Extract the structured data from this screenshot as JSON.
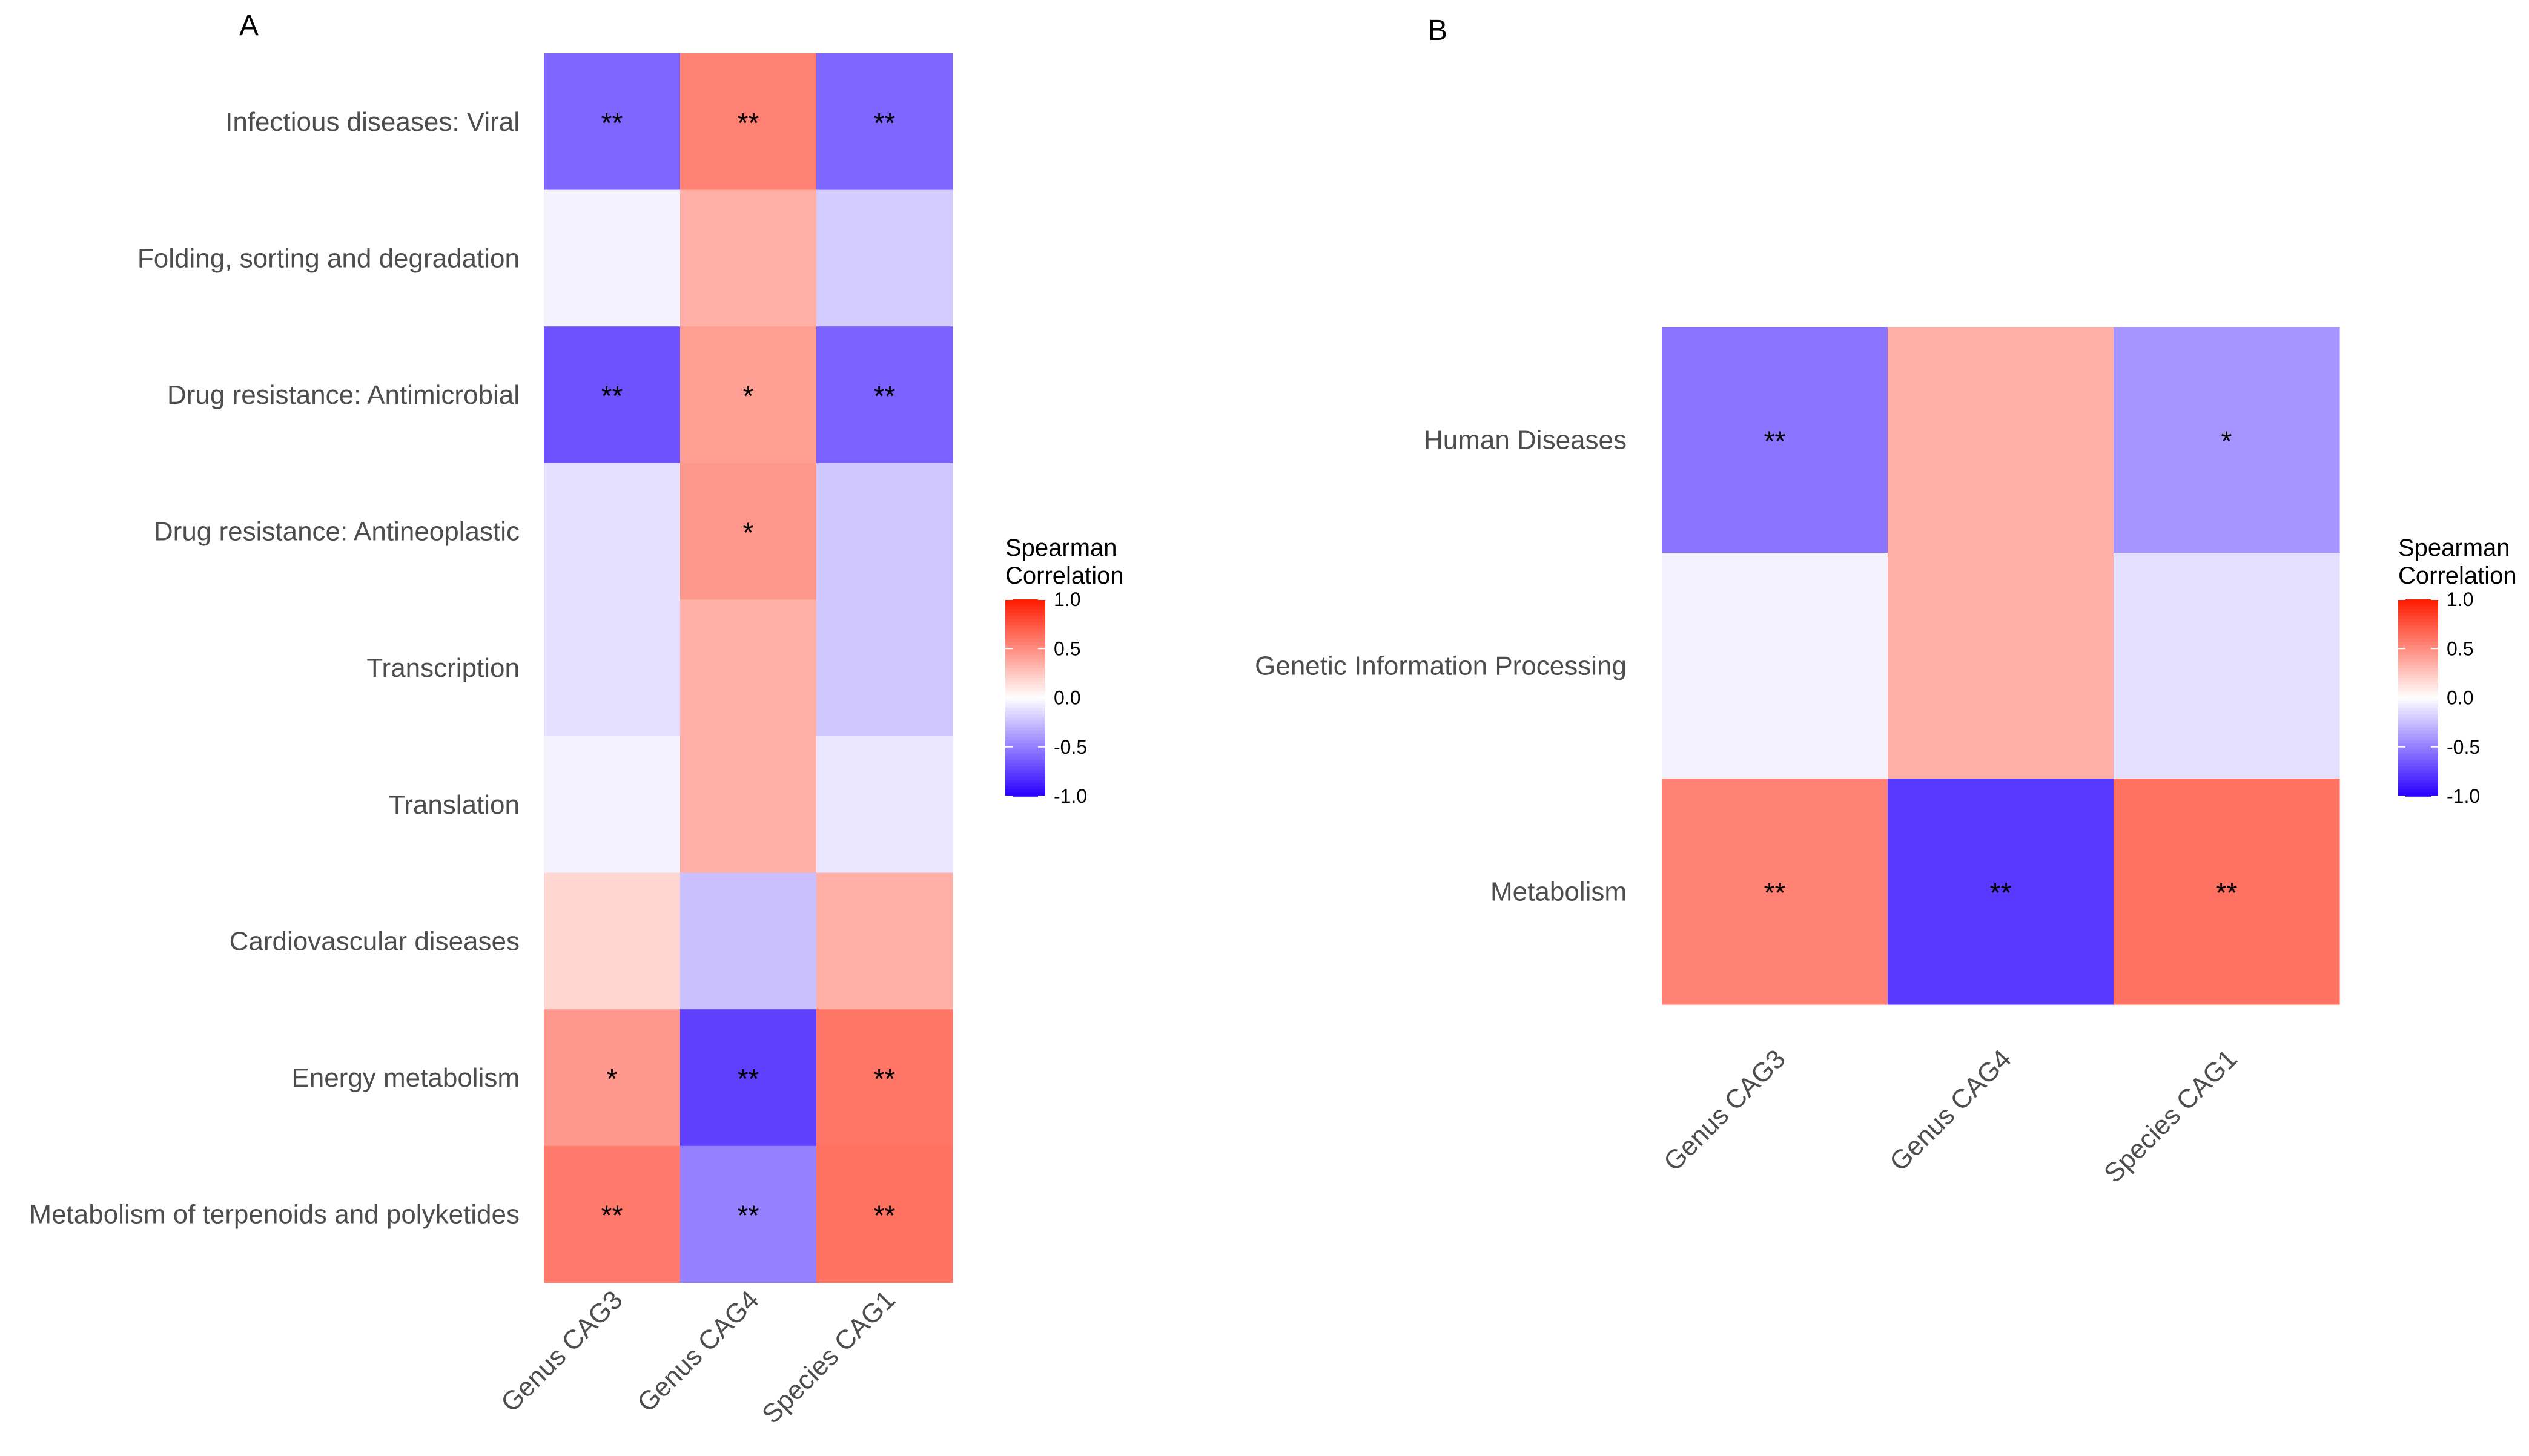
{
  "chart_data": [
    {
      "type": "heatmap",
      "panel": "A",
      "rows": [
        "Infectious diseases: Viral",
        "Folding, sorting and degradation",
        "Drug resistance: Antimicrobial",
        "Drug resistance: Antineoplastic",
        "Transcription",
        "Translation",
        "Cardiovascular diseases",
        "Energy metabolism",
        "Metabolism of terpenoids and polyketides"
      ],
      "columns": [
        "Genus CAG3",
        "Genus CAG4",
        "Species CAG1"
      ],
      "values": [
        [
          -0.6,
          0.55,
          -0.6
        ],
        [
          -0.05,
          0.35,
          -0.2
        ],
        [
          -0.68,
          0.42,
          -0.62
        ],
        [
          -0.12,
          0.45,
          -0.22
        ],
        [
          -0.12,
          0.35,
          -0.22
        ],
        [
          -0.05,
          0.35,
          -0.1
        ],
        [
          0.18,
          -0.25,
          0.35
        ],
        [
          0.45,
          -0.75,
          0.6
        ],
        [
          0.58,
          -0.5,
          0.62
        ]
      ],
      "significance": [
        [
          "**",
          "**",
          "**"
        ],
        [
          "",
          "",
          ""
        ],
        [
          "**",
          "*",
          "**"
        ],
        [
          "",
          "*",
          ""
        ],
        [
          "",
          "",
          ""
        ],
        [
          "",
          "",
          ""
        ],
        [
          "",
          "",
          ""
        ],
        [
          "*",
          "**",
          "**"
        ],
        [
          "**",
          "**",
          "**"
        ]
      ],
      "legend": {
        "title_line1": "Spearman",
        "title_line2": "Correlation",
        "ticks": [
          "1.0",
          "0.5",
          "0.0",
          "-0.5",
          "-1.0"
        ],
        "tick_values": [
          1.0,
          0.5,
          0.0,
          -0.5,
          -1.0
        ],
        "range": [
          -1.0,
          1.0
        ]
      }
    },
    {
      "type": "heatmap",
      "panel": "B",
      "rows": [
        "Human Diseases",
        "Genetic Information Processing",
        "Metabolism"
      ],
      "columns": [
        "Genus CAG3",
        "Genus CAG4",
        "Species CAG1"
      ],
      "values": [
        [
          -0.55,
          0.35,
          -0.42
        ],
        [
          -0.05,
          0.35,
          -0.12
        ],
        [
          0.55,
          -0.78,
          0.62
        ]
      ],
      "significance": [
        [
          "**",
          "",
          "*"
        ],
        [
          "",
          "",
          ""
        ],
        [
          "**",
          "**",
          "**"
        ]
      ],
      "legend": {
        "title_line1": "Spearman",
        "title_line2": "Correlation",
        "ticks": [
          "1.0",
          "0.5",
          "0.0",
          "-0.5",
          "-1.0"
        ],
        "tick_values": [
          1.0,
          0.5,
          0.0,
          -0.5,
          -1.0
        ],
        "range": [
          -1.0,
          1.0
        ]
      }
    }
  ],
  "colors": {
    "low": "#2a00ff",
    "mid": "#ffffff",
    "high": "#ff1a00"
  }
}
